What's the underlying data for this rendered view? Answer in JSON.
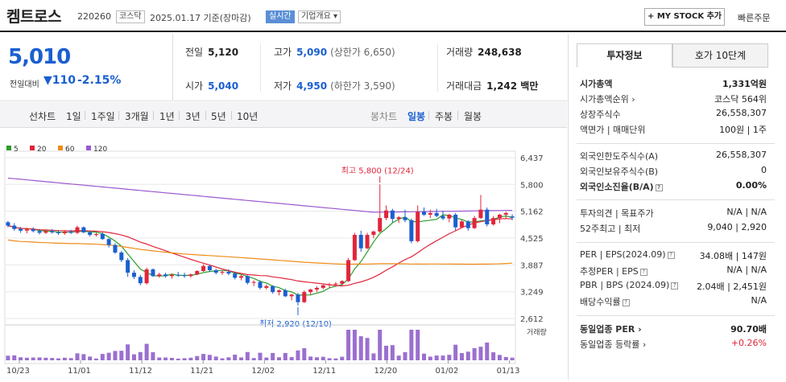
{
  "header": {
    "name": "켐트로스",
    "code": "220260",
    "market": "코스닥",
    "date": "2025.01.17  기준(장마감)",
    "live": "실시간",
    "company_info": "기업개요 ▾",
    "mystock": "+ MY STOCK 추가",
    "quick_order": "빠른주문"
  },
  "price": {
    "current": "5,010",
    "change_label": "전일대비",
    "change": "▼110",
    "change_pct": "-2.15%"
  },
  "quotes": {
    "prev_label": "전일",
    "prev": "5,120",
    "high_label": "고가",
    "high": "5,090",
    "upper_limit": "(상한가 6,650)",
    "volume_label": "거래량",
    "volume": "248,638",
    "open_label": "시가",
    "open": "5,040",
    "low_label": "저가",
    "low": "4,950",
    "lower_limit": "(하한가 3,590)",
    "amount_label": "거래대금",
    "amount": "1,242 백만"
  },
  "range_bar": {
    "line_chart": "선차트",
    "ranges": [
      "1일",
      "1주일",
      "3개월",
      "1년",
      "3년",
      "5년",
      "10년"
    ],
    "candle_label": "봉차트",
    "candle_types": [
      "일봉",
      "주봉",
      "월봉"
    ]
  },
  "side": {
    "tab_invest": "투자정보",
    "tab_quote10": "호가 10단계",
    "rows1": [
      {
        "k": "시가총액",
        "v": "1,331억원"
      },
      {
        "k": "시가총액순위 ›",
        "v": "코스닥 564위"
      },
      {
        "k": "상장주식수",
        "v": "26,558,307"
      },
      {
        "k": "액면가 | 매매단위",
        "v": "100원 | 1주"
      }
    ],
    "rows2": [
      {
        "k": "외국인한도주식수(A)",
        "v": "26,558,307"
      },
      {
        "k": "외국인보유주식수(B)",
        "v": "0"
      },
      {
        "k": "외국인소진율(B/A)",
        "v": "0.00%"
      }
    ],
    "rows3": [
      {
        "k": "투자의견 | 목표주가",
        "v": "N/A | N/A"
      },
      {
        "k": "52주최고 | 최저",
        "v": "9,040 | 2,920"
      }
    ],
    "rows4": [
      {
        "k": "PER | EPS(2024.09)",
        "v": "34.08배 | 147원"
      },
      {
        "k": "추정PER | EPS",
        "v": "N/A | N/A"
      },
      {
        "k": "PBR | BPS (2024.09)",
        "v": "2.04배 | 2,451원"
      },
      {
        "k": "배당수익률",
        "v": "N/A"
      }
    ],
    "rows5": [
      {
        "k": "동일업종 PER ›",
        "v": "90.70배"
      },
      {
        "k": "동일업종 등락률 ›",
        "v": "+0.26%"
      }
    ]
  },
  "chart_data": {
    "type": "candlestick",
    "legend": [
      "5",
      "20",
      "60",
      "120"
    ],
    "legend_colors": [
      "#2a9d2a",
      "#e0263b",
      "#f08c1a",
      "#9b59d0"
    ],
    "y_ticks": [
      6437,
      5800,
      5162,
      4525,
      3887,
      3249,
      2612
    ],
    "ylim": [
      2612,
      6437
    ],
    "x_ticks": [
      "10/23",
      "11/01",
      "11/12",
      "11/21",
      "12/02",
      "12/11",
      "12/20",
      "01/02",
      "01/13"
    ],
    "annotations": {
      "high": "최고 5,800 (12/24)",
      "low": "최저 2,920 (12/10)"
    },
    "volume_label": "거래량",
    "candles": [
      [
        4900,
        4930,
        4780,
        4820
      ],
      [
        4820,
        4880,
        4700,
        4740
      ],
      [
        4740,
        4790,
        4650,
        4700
      ],
      [
        4700,
        4770,
        4640,
        4730
      ],
      [
        4730,
        4780,
        4660,
        4690
      ],
      [
        4690,
        4740,
        4610,
        4650
      ],
      [
        4650,
        4720,
        4620,
        4690
      ],
      [
        4690,
        4740,
        4630,
        4660
      ],
      [
        4660,
        4710,
        4600,
        4640
      ],
      [
        4640,
        4700,
        4600,
        4680
      ],
      [
        4680,
        4720,
        4620,
        4650
      ],
      [
        4650,
        4820,
        4620,
        4780
      ],
      [
        4780,
        4800,
        4640,
        4660
      ],
      [
        4660,
        4700,
        4560,
        4600
      ],
      [
        4600,
        4650,
        4560,
        4620
      ],
      [
        4620,
        4660,
        4480,
        4500
      ],
      [
        4500,
        4520,
        4300,
        4360
      ],
      [
        4360,
        4400,
        4150,
        4180
      ],
      [
        4180,
        4220,
        3950,
        4000
      ],
      [
        4000,
        4050,
        3600,
        3700
      ],
      [
        3700,
        3760,
        3550,
        3600
      ],
      [
        3600,
        3650,
        3400,
        3450
      ],
      [
        3450,
        3820,
        3420,
        3780
      ],
      [
        3780,
        3800,
        3600,
        3620
      ],
      [
        3620,
        3700,
        3580,
        3660
      ],
      [
        3660,
        3700,
        3580,
        3620
      ],
      [
        3620,
        3680,
        3560,
        3650
      ],
      [
        3650,
        3720,
        3600,
        3640
      ],
      [
        3640,
        3700,
        3580,
        3620
      ],
      [
        3620,
        3680,
        3580,
        3660
      ],
      [
        3660,
        3760,
        3640,
        3740
      ],
      [
        3740,
        3900,
        3720,
        3860
      ],
      [
        3860,
        3880,
        3720,
        3760
      ],
      [
        3760,
        3800,
        3660,
        3700
      ],
      [
        3700,
        3760,
        3650,
        3720
      ],
      [
        3720,
        3780,
        3640,
        3680
      ],
      [
        3680,
        3720,
        3540,
        3580
      ],
      [
        3580,
        3650,
        3520,
        3620
      ],
      [
        3620,
        3640,
        3420,
        3460
      ],
      [
        3460,
        3520,
        3380,
        3480
      ],
      [
        3480,
        3520,
        3300,
        3340
      ],
      [
        3340,
        3420,
        3300,
        3380
      ],
      [
        3380,
        3400,
        3200,
        3240
      ],
      [
        3240,
        3300,
        3160,
        3280
      ],
      [
        3280,
        3320,
        3120,
        3140
      ],
      [
        3140,
        3200,
        3040,
        3180
      ],
      [
        3180,
        3220,
        2920,
        3000
      ],
      [
        3000,
        3280,
        2980,
        3240
      ],
      [
        3240,
        3320,
        3180,
        3300
      ],
      [
        3300,
        3380,
        3240,
        3340
      ],
      [
        3340,
        3420,
        3300,
        3400
      ],
      [
        3400,
        3460,
        3340,
        3420
      ],
      [
        3420,
        3480,
        3380,
        3440
      ],
      [
        3440,
        3520,
        3400,
        3500
      ],
      [
        3500,
        4050,
        3480,
        4000
      ],
      [
        4000,
        4650,
        3980,
        4600
      ],
      [
        4600,
        4700,
        4200,
        4280
      ],
      [
        4280,
        4650,
        4260,
        4600
      ],
      [
        4600,
        4700,
        4520,
        4680
      ],
      [
        4680,
        5800,
        4650,
        5000
      ],
      [
        5000,
        5300,
        4950,
        5180
      ],
      [
        5180,
        5220,
        4900,
        4980
      ],
      [
        4980,
        5050,
        4880,
        5020
      ],
      [
        5020,
        5200,
        4900,
        4950
      ],
      [
        4950,
        4990,
        4400,
        4450
      ],
      [
        4450,
        5300,
        4420,
        5150
      ],
      [
        5150,
        5250,
        5050,
        5080
      ],
      [
        5080,
        5200,
        5000,
        5120
      ],
      [
        5120,
        5220,
        5020,
        5050
      ],
      [
        5050,
        5180,
        4950,
        4990
      ],
      [
        4990,
        5100,
        4900,
        5080
      ],
      [
        5080,
        5120,
        4700,
        4780
      ],
      [
        4780,
        4950,
        4760,
        4920
      ],
      [
        4920,
        4950,
        4700,
        4760
      ],
      [
        4760,
        5050,
        4740,
        5000
      ],
      [
        5000,
        5550,
        4980,
        5200
      ],
      [
        5200,
        5250,
        4800,
        4850
      ],
      [
        4850,
        5050,
        4820,
        5000
      ],
      [
        5000,
        5100,
        4880,
        5080
      ],
      [
        5080,
        5150,
        4980,
        5120
      ],
      [
        5040,
        5090,
        4950,
        5010
      ]
    ]
  }
}
